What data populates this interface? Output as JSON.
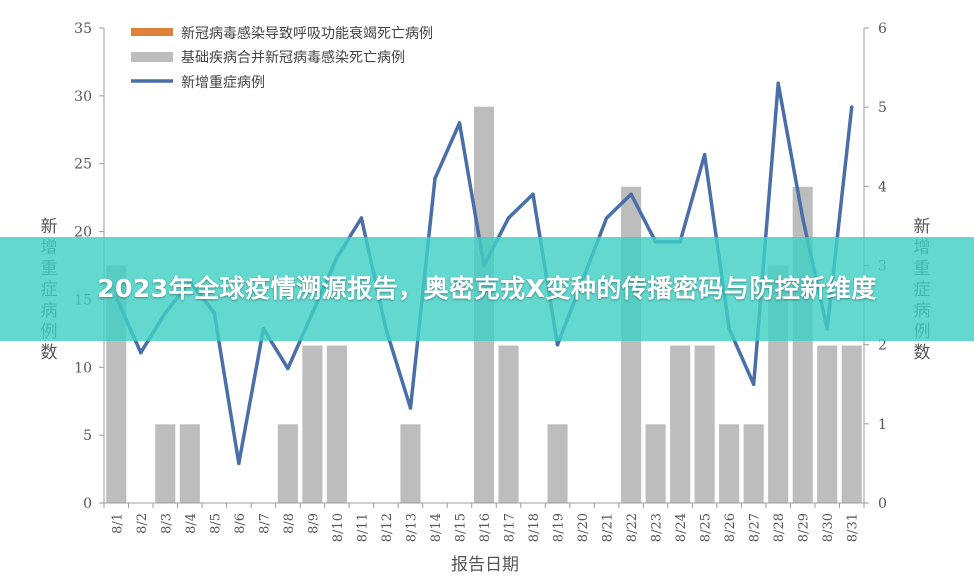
{
  "overlay": {
    "headline": "2023年全球疫情溯源报告，奥密克戎X变种的传播密码与防控新维度"
  },
  "chart_data": {
    "type": "bar",
    "title": "",
    "xlabel": "报告日期",
    "ylabel_left": "新增重症病例数",
    "ylabel_right": "新增重症病例数",
    "ylim_left": [
      0,
      35
    ],
    "ylim_right": [
      0,
      6
    ],
    "yticks_left": [
      0,
      5,
      10,
      15,
      20,
      25,
      30,
      35
    ],
    "yticks_right": [
      0,
      1,
      2,
      3,
      4,
      5,
      6
    ],
    "grid": false,
    "legend_position": "top-left",
    "categories": [
      "8/1",
      "8/2",
      "8/3",
      "8/4",
      "8/5",
      "8/6",
      "8/7",
      "8/8",
      "8/9",
      "8/10",
      "8/11",
      "8/12",
      "8/13",
      "8/14",
      "8/15",
      "8/16",
      "8/17",
      "8/18",
      "8/19",
      "8/20",
      "8/21",
      "8/22",
      "8/23",
      "8/24",
      "8/25",
      "8/26",
      "8/27",
      "8/28",
      "8/29",
      "8/30",
      "8/31"
    ],
    "series": [
      {
        "name": "新冠病毒感染导致呼吸功能衰竭死亡病例",
        "kind": "bar",
        "axis": "left",
        "color": "#e0803a",
        "values": [
          0,
          0,
          0,
          0,
          0,
          0,
          0,
          0,
          0,
          0,
          0,
          0,
          0,
          0,
          0,
          0,
          0,
          0,
          0,
          0,
          0,
          0,
          0,
          0,
          0,
          0,
          0,
          0,
          0,
          0,
          0
        ]
      },
      {
        "name": "基础疾病合并新冠病毒感染死亡病例",
        "kind": "bar",
        "axis": "left",
        "color": "#bdbdbd",
        "values": [
          17.5,
          0,
          5.8,
          5.8,
          0,
          0,
          0,
          5.8,
          11.6,
          11.6,
          0,
          0,
          5.8,
          0,
          0,
          29.2,
          11.6,
          0,
          5.8,
          0,
          0,
          23.3,
          5.8,
          11.6,
          11.6,
          5.8,
          5.8,
          17.5,
          23.3,
          11.6,
          11.6
        ]
      },
      {
        "name": "新增重症病例",
        "kind": "line",
        "axis": "right",
        "color": "#4a6fa8",
        "values": [
          2.6,
          1.9,
          2.4,
          2.8,
          2.4,
          0.5,
          2.2,
          1.7,
          2.4,
          3.1,
          3.6,
          2.2,
          1.2,
          4.1,
          4.8,
          3.0,
          3.6,
          3.9,
          2.0,
          2.8,
          3.6,
          3.9,
          3.3,
          3.3,
          4.4,
          2.2,
          1.5,
          5.3,
          3.6,
          2.2,
          5.0
        ]
      }
    ]
  }
}
